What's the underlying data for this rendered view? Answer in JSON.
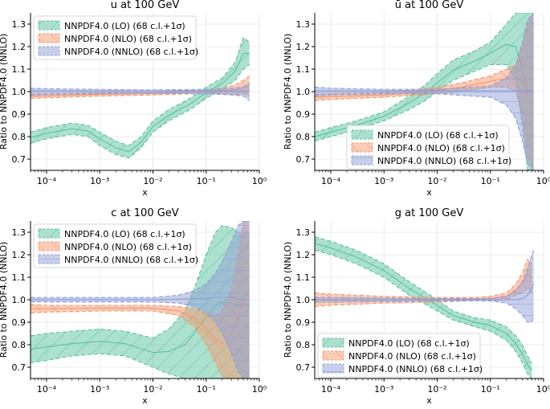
{
  "figure": {
    "ylabel": "Ratio to NNPDF4.0 (NNLO)",
    "xlabel": "x"
  },
  "colors": {
    "LO": "#5cc4a0",
    "NLO": "#f49a72",
    "NNLO": "#8f9fd6",
    "grid": "#e6e6e6",
    "axis": "#000000"
  },
  "legend_labels": {
    "LO": "NNPDF4.0 (LO) (68 c.l.+1σ)",
    "NLO": "NNPDF4.0 (NLO) (68 c.l.+1σ)",
    "NNLO": "NNPDF4.0 (NNLO) (68 c.l.+1σ)"
  },
  "chart_data": [
    {
      "type": "area",
      "title": "u at 100 GeV",
      "xlabel": "x",
      "ylabel": "Ratio to NNPDF4.0 (NNLO)",
      "xscale": "log",
      "xlim": [
        5e-05,
        1
      ],
      "ylim": [
        0.65,
        1.35
      ],
      "xticks": [
        0.0001,
        0.001,
        0.01,
        0.1,
        1
      ],
      "xticklabels": [
        "10⁻⁴",
        "10⁻³",
        "10⁻²",
        "10⁻¹",
        "10⁰"
      ],
      "yticks": [
        0.7,
        0.8,
        0.9,
        1.0,
        1.1,
        1.2,
        1.3
      ],
      "yticklabels": [
        "0.7",
        "0.8",
        "0.9",
        "1.0",
        "1.1",
        "1.2",
        "1.3"
      ],
      "legend_position": "top-left",
      "series": [
        {
          "name": "LO",
          "x": [
            5e-05,
            0.0001,
            0.0003,
            0.0006,
            0.001,
            0.002,
            0.0035,
            0.006,
            0.01,
            0.02,
            0.05,
            0.1,
            0.2,
            0.35,
            0.5,
            0.65
          ],
          "lower": [
            0.77,
            0.79,
            0.81,
            0.8,
            0.76,
            0.72,
            0.705,
            0.75,
            0.82,
            0.87,
            0.92,
            0.97,
            1.01,
            1.05,
            1.1,
            1.12
          ],
          "upper": [
            0.82,
            0.84,
            0.86,
            0.85,
            0.82,
            0.78,
            0.76,
            0.8,
            0.87,
            0.92,
            0.97,
            1.02,
            1.06,
            1.13,
            1.24,
            1.22
          ]
        },
        {
          "name": "NLO",
          "x": [
            5e-05,
            0.0001,
            0.001,
            0.01,
            0.05,
            0.1,
            0.2,
            0.35,
            0.5,
            0.65
          ],
          "lower": [
            0.97,
            0.972,
            0.98,
            0.985,
            0.99,
            0.993,
            0.99,
            0.985,
            0.99,
            0.98
          ],
          "upper": [
            0.99,
            0.99,
            0.995,
            1.0,
            1.005,
            1.008,
            1.015,
            1.03,
            1.05,
            1.07
          ]
        },
        {
          "name": "NNLO",
          "x": [
            5e-05,
            0.0001,
            0.001,
            0.01,
            0.1,
            0.3,
            0.5,
            0.65
          ],
          "lower": [
            0.985,
            0.987,
            0.99,
            0.992,
            0.99,
            0.985,
            0.98,
            0.96
          ],
          "upper": [
            1.015,
            1.013,
            1.01,
            1.008,
            1.01,
            1.015,
            1.02,
            1.04
          ]
        }
      ]
    },
    {
      "type": "area",
      "title": "ū at 100 GeV",
      "xlabel": "x",
      "ylabel": "Ratio to NNPDF4.0 (NNLO)",
      "xscale": "log",
      "xlim": [
        5e-05,
        1
      ],
      "ylim": [
        0.65,
        1.35
      ],
      "xticks": [
        0.0001,
        0.001,
        0.01,
        0.1,
        1
      ],
      "xticklabels": [
        "10⁻⁴",
        "10⁻³",
        "10⁻²",
        "10⁻¹",
        "10⁰"
      ],
      "yticks": [
        0.7,
        0.8,
        0.9,
        1.0,
        1.1,
        1.2,
        1.3
      ],
      "yticklabels": [
        "0.7",
        "0.8",
        "0.9",
        "1.0",
        "1.1",
        "1.2",
        "1.3"
      ],
      "legend_position": "lower-right",
      "series": [
        {
          "name": "LO",
          "x": [
            5e-05,
            0.0001,
            0.0003,
            0.001,
            0.003,
            0.006,
            0.01,
            0.02,
            0.05,
            0.1,
            0.2,
            0.3,
            0.4,
            0.5,
            0.65
          ],
          "lower": [
            0.78,
            0.8,
            0.83,
            0.87,
            0.92,
            0.96,
            1.0,
            1.05,
            1.09,
            1.12,
            1.12,
            1.05,
            0.85,
            0.65,
            0.65
          ],
          "upper": [
            0.82,
            0.84,
            0.87,
            0.91,
            0.98,
            1.03,
            1.08,
            1.14,
            1.18,
            1.22,
            1.3,
            1.35,
            1.35,
            1.35,
            1.35
          ]
        },
        {
          "name": "NLO",
          "x": [
            5e-05,
            0.0001,
            0.001,
            0.01,
            0.03,
            0.1,
            0.2,
            0.3,
            0.4,
            0.5,
            0.65
          ],
          "lower": [
            0.96,
            0.965,
            0.975,
            0.99,
            1.0,
            1.02,
            1.02,
            1.0,
            0.9,
            0.72,
            0.65
          ],
          "upper": [
            0.99,
            0.99,
            0.995,
            1.02,
            1.04,
            1.07,
            1.1,
            1.12,
            1.2,
            1.3,
            1.35
          ]
        },
        {
          "name": "NNLO",
          "x": [
            5e-05,
            0.0001,
            0.001,
            0.01,
            0.1,
            0.2,
            0.3,
            0.4,
            0.5,
            0.65
          ],
          "lower": [
            0.98,
            0.985,
            0.99,
            0.99,
            0.975,
            0.94,
            0.88,
            0.78,
            0.68,
            0.65
          ],
          "upper": [
            1.02,
            1.015,
            1.01,
            1.01,
            1.025,
            1.06,
            1.12,
            1.22,
            1.32,
            1.35
          ]
        }
      ]
    },
    {
      "type": "area",
      "title": "c at 100 GeV",
      "xlabel": "x",
      "ylabel": "Ratio to NNPDF4.0 (NNLO)",
      "xscale": "log",
      "xlim": [
        5e-05,
        1
      ],
      "ylim": [
        0.65,
        1.35
      ],
      "xticks": [
        0.0001,
        0.001,
        0.01,
        0.1,
        1
      ],
      "xticklabels": [
        "10⁻⁴",
        "10⁻³",
        "10⁻²",
        "10⁻¹",
        "10⁰"
      ],
      "yticks": [
        0.7,
        0.8,
        0.9,
        1.0,
        1.1,
        1.2,
        1.3
      ],
      "yticklabels": [
        "0.7",
        "0.8",
        "0.9",
        "1.0",
        "1.1",
        "1.2",
        "1.3"
      ],
      "legend_position": "top-left",
      "series": [
        {
          "name": "LO",
          "x": [
            5e-05,
            0.0001,
            0.0003,
            0.001,
            0.003,
            0.01,
            0.02,
            0.04,
            0.06,
            0.1,
            0.15,
            0.2,
            0.3,
            0.4,
            0.5,
            0.65
          ],
          "lower": [
            0.72,
            0.73,
            0.75,
            0.76,
            0.75,
            0.7,
            0.67,
            0.65,
            0.65,
            0.65,
            0.65,
            0.65,
            0.65,
            0.65,
            0.65,
            0.65
          ],
          "upper": [
            0.84,
            0.85,
            0.86,
            0.87,
            0.86,
            0.83,
            0.87,
            0.95,
            1.05,
            1.2,
            1.3,
            1.33,
            1.32,
            1.3,
            1.3,
            1.3
          ]
        },
        {
          "name": "NLO",
          "x": [
            5e-05,
            0.0001,
            0.001,
            0.01,
            0.03,
            0.06,
            0.1,
            0.15,
            0.2,
            0.3,
            0.4,
            0.5,
            0.65
          ],
          "lower": [
            0.94,
            0.945,
            0.95,
            0.95,
            0.93,
            0.88,
            0.8,
            0.72,
            0.66,
            0.65,
            0.65,
            0.65,
            0.65
          ],
          "upper": [
            0.98,
            0.975,
            0.975,
            0.975,
            0.97,
            0.96,
            0.94,
            0.93,
            0.95,
            1.05,
            1.2,
            1.35,
            1.35
          ]
        },
        {
          "name": "NNLO",
          "x": [
            5e-05,
            0.0001,
            0.001,
            0.01,
            0.03,
            0.06,
            0.1,
            0.15,
            0.2,
            0.3,
            0.4,
            0.5,
            0.65
          ],
          "lower": [
            0.99,
            0.99,
            0.99,
            0.99,
            0.985,
            0.97,
            0.94,
            0.9,
            0.85,
            0.76,
            0.68,
            0.65,
            0.65
          ],
          "upper": [
            1.01,
            1.01,
            1.01,
            1.01,
            1.02,
            1.04,
            1.07,
            1.12,
            1.17,
            1.26,
            1.33,
            1.35,
            1.35
          ]
        }
      ]
    },
    {
      "type": "area",
      "title": "g at 100 GeV",
      "xlabel": "x",
      "ylabel": "Ratio to NNPDF4.0 (NNLO)",
      "xscale": "log",
      "xlim": [
        5e-05,
        1
      ],
      "ylim": [
        0.65,
        1.35
      ],
      "xticks": [
        0.0001,
        0.001,
        0.01,
        0.1,
        1
      ],
      "xticklabels": [
        "10⁻⁴",
        "10⁻³",
        "10⁻²",
        "10⁻¹",
        "10⁰"
      ],
      "yticks": [
        0.7,
        0.8,
        0.9,
        1.0,
        1.1,
        1.2,
        1.3
      ],
      "yticklabels": [
        "0.7",
        "0.8",
        "0.9",
        "1.0",
        "1.1",
        "1.2",
        "1.3"
      ],
      "legend_position": "lower-left",
      "series": [
        {
          "name": "LO",
          "x": [
            5e-05,
            0.0001,
            0.0003,
            0.001,
            0.003,
            0.01,
            0.02,
            0.05,
            0.1,
            0.2,
            0.3,
            0.4,
            0.5,
            0.6
          ],
          "lower": [
            1.22,
            1.2,
            1.16,
            1.1,
            1.02,
            0.95,
            0.91,
            0.88,
            0.86,
            0.82,
            0.77,
            0.72,
            0.67,
            0.65
          ],
          "upper": [
            1.28,
            1.26,
            1.22,
            1.16,
            1.08,
            1.0,
            0.95,
            0.92,
            0.91,
            0.88,
            0.84,
            0.8,
            0.75,
            0.72
          ]
        },
        {
          "name": "NLO",
          "x": [
            5e-05,
            0.0001,
            0.001,
            0.01,
            0.05,
            0.1,
            0.2,
            0.3,
            0.4,
            0.5,
            0.6
          ],
          "lower": [
            0.97,
            0.975,
            0.985,
            0.99,
            0.995,
            0.995,
            1.0,
            1.02,
            1.03,
            1.05,
            1.03
          ],
          "upper": [
            1.03,
            1.025,
            1.015,
            1.01,
            1.01,
            1.015,
            1.03,
            1.07,
            1.12,
            1.18,
            1.16
          ]
        },
        {
          "name": "NNLO",
          "x": [
            5e-05,
            0.0001,
            0.001,
            0.01,
            0.1,
            0.2,
            0.3,
            0.4,
            0.5,
            0.6,
            0.65
          ],
          "lower": [
            0.99,
            0.99,
            0.992,
            0.995,
            0.995,
            0.985,
            0.96,
            0.93,
            0.9,
            0.9,
            0.92
          ],
          "upper": [
            1.01,
            1.01,
            1.008,
            1.005,
            1.005,
            1.015,
            1.04,
            1.08,
            1.14,
            1.2,
            1.22
          ]
        }
      ]
    }
  ]
}
